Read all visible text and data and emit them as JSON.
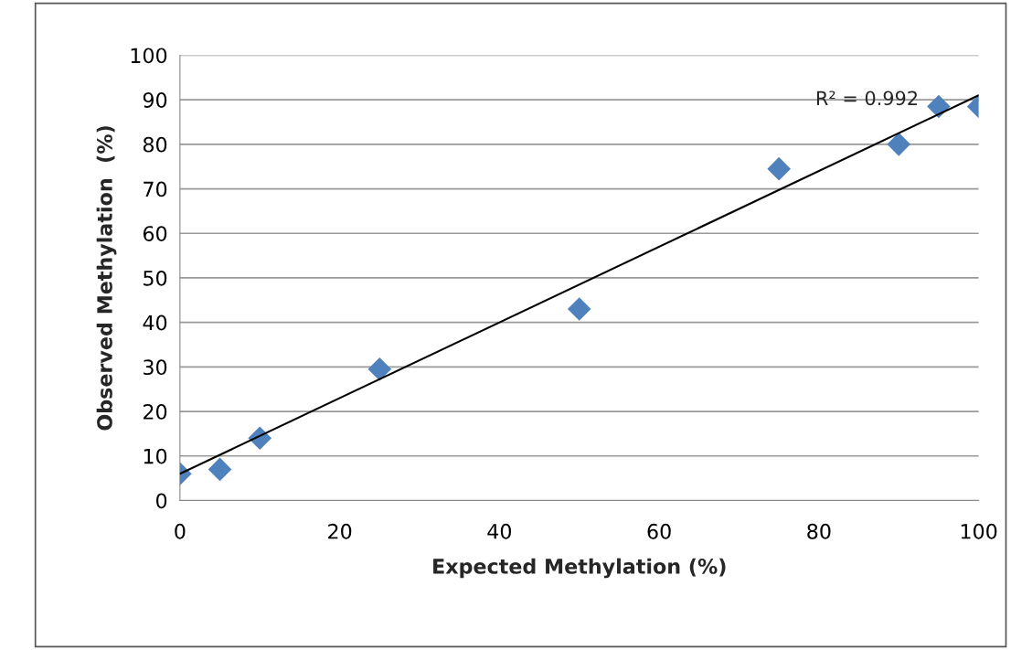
{
  "chart_data": {
    "type": "scatter",
    "xlabel": "Expected Methylation (%)",
    "ylabel": "Observed Methylation  (%)",
    "x": [
      0,
      5,
      10,
      25,
      50,
      75,
      90,
      95,
      100
    ],
    "series": [
      {
        "color": "#4f81bd",
        "marker": "diamond",
        "values": [
          6,
          7,
          14,
          29.5,
          43,
          74.5,
          80,
          88.5,
          88.5
        ]
      },
      {
        "type": "line",
        "color": "#000000",
        "marker": "none",
        "x": [
          0,
          100
        ],
        "values": [
          6,
          91
        ]
      }
    ],
    "annotations": [
      "R² = 0.992"
    ],
    "xlim": [
      0,
      100
    ],
    "xticks": [
      0,
      20,
      40,
      60,
      80,
      100
    ],
    "ylim": [
      0,
      100
    ],
    "yticks": [
      0,
      10,
      20,
      30,
      40,
      50,
      60,
      70,
      80,
      90,
      100
    ],
    "grid": "y",
    "legend": false
  }
}
